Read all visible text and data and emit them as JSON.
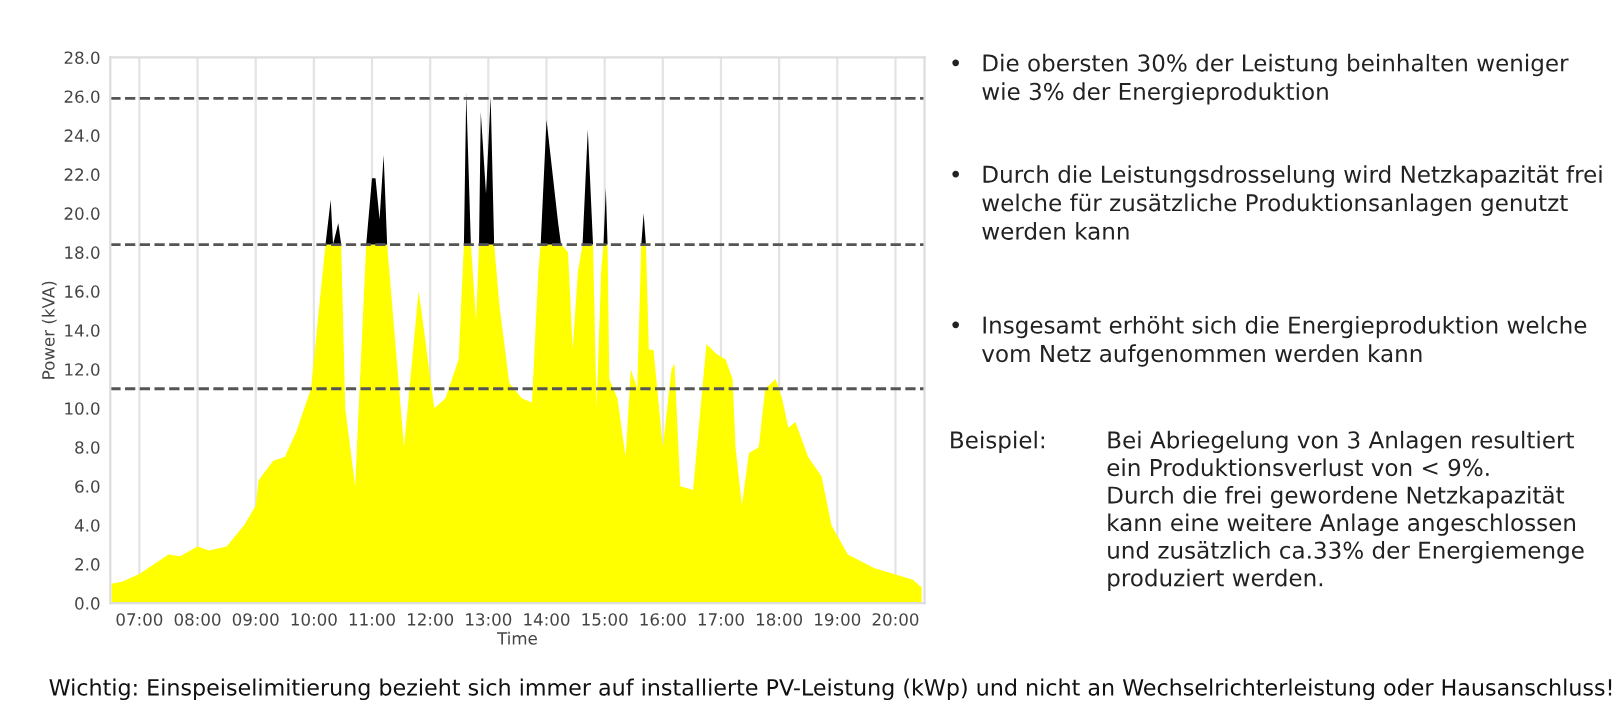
{
  "chart_data": {
    "type": "area",
    "stacked": true,
    "xlabel": "Time",
    "ylabel": "Power (kVA)",
    "x": [
      6.52,
      6.7,
      7.0,
      7.3,
      7.5,
      7.7,
      8.0,
      8.2,
      8.5,
      8.8,
      9.0,
      9.05,
      9.3,
      9.5,
      9.7,
      9.95,
      10.2,
      10.29,
      10.33,
      10.42,
      10.47,
      10.54,
      10.71,
      10.9,
      11.0,
      11.06,
      11.13,
      11.2,
      11.26,
      11.55,
      11.8,
      11.85,
      12.07,
      12.26,
      12.49,
      12.58,
      12.62,
      12.7,
      12.79,
      12.84,
      12.87,
      12.96,
      13.04,
      13.1,
      13.19,
      13.36,
      13.58,
      13.75,
      13.86,
      13.9,
      14.0,
      14.2,
      14.25,
      14.37,
      14.45,
      14.54,
      14.62,
      14.71,
      14.8,
      14.86,
      14.94,
      14.98,
      15.02,
      15.05,
      15.08,
      15.22,
      15.36,
      15.45,
      15.56,
      15.63,
      15.67,
      15.71,
      15.76,
      15.84,
      16.0,
      16.15,
      16.2,
      16.3,
      16.52,
      16.75,
      16.92,
      17.08,
      17.2,
      17.25,
      17.36,
      17.48,
      17.65,
      17.76,
      17.94,
      18.05,
      18.16,
      18.28,
      18.5,
      18.73,
      18.9,
      19.18,
      19.63,
      20.3,
      20.45
    ],
    "series": [
      {
        "color": "#ffff00",
        "values": [
          1.0,
          1.1,
          1.5,
          2.1,
          2.5,
          2.4,
          2.9,
          2.7,
          2.9,
          4.0,
          5.0,
          6.3,
          7.3,
          7.5,
          8.8,
          11.0,
          18.4,
          18.4,
          18.4,
          18.4,
          18.4,
          10.0,
          6.0,
          18.4,
          18.4,
          18.4,
          18.4,
          18.4,
          18.4,
          8.0,
          16.0,
          15.0,
          10.0,
          10.5,
          12.5,
          18.4,
          18.4,
          18.4,
          14.5,
          18.4,
          18.4,
          18.4,
          18.4,
          18.4,
          15.3,
          11.3,
          10.5,
          10.3,
          17.0,
          18.4,
          18.4,
          18.4,
          18.4,
          18.0,
          13.0,
          17.0,
          18.4,
          18.4,
          18.4,
          10.0,
          17.0,
          18.4,
          18.4,
          18.4,
          11.5,
          10.5,
          7.5,
          12.0,
          11.0,
          18.4,
          18.4,
          18.4,
          13.0,
          13.0,
          8.0,
          12.0,
          12.3,
          6.0,
          5.8,
          13.3,
          12.8,
          12.5,
          11.5,
          8.0,
          5.0,
          7.7,
          8.0,
          11.0,
          11.5,
          10.5,
          9.0,
          9.3,
          7.5,
          6.5,
          4.0,
          2.5,
          1.8,
          1.2,
          0.8
        ]
      },
      {
        "color": "#000000",
        "values": [
          0,
          0,
          0,
          0,
          0,
          0,
          0,
          0,
          0,
          0,
          0,
          0,
          0,
          0,
          0,
          0,
          0,
          2.3,
          0,
          1.1,
          0,
          0,
          0,
          0,
          3.4,
          3.4,
          1.3,
          4.6,
          0,
          0,
          0,
          0,
          0,
          0,
          0,
          0,
          7.8,
          0,
          0,
          0,
          6.8,
          2.6,
          7.6,
          0,
          0,
          0,
          0,
          0,
          0,
          0,
          6.4,
          1.1,
          0,
          0,
          0,
          0,
          0,
          5.9,
          0,
          0,
          0,
          0,
          2.9,
          0,
          0,
          0,
          0,
          0,
          0,
          0,
          1.6,
          0,
          0,
          0,
          0,
          0,
          0,
          0,
          0,
          0,
          0,
          0,
          0,
          0,
          0,
          0,
          0,
          0,
          0,
          0,
          0,
          0,
          0,
          0,
          0,
          0,
          0,
          0,
          0
        ]
      }
    ],
    "xlim": [
      6.5,
      20.5
    ],
    "xticks": [
      {
        "value": 7,
        "label": "07:00"
      },
      {
        "value": 8,
        "label": "08:00"
      },
      {
        "value": 9,
        "label": "09:00"
      },
      {
        "value": 10,
        "label": "10:00"
      },
      {
        "value": 11,
        "label": "11:00"
      },
      {
        "value": 12,
        "label": "12:00"
      },
      {
        "value": 13,
        "label": "13:00"
      },
      {
        "value": 14,
        "label": "14:00"
      },
      {
        "value": 15,
        "label": "15:00"
      },
      {
        "value": 16,
        "label": "16:00"
      },
      {
        "value": 17,
        "label": "17:00"
      },
      {
        "value": 18,
        "label": "18:00"
      },
      {
        "value": 19,
        "label": "19:00"
      },
      {
        "value": 20,
        "label": "20:00"
      }
    ],
    "ylim": [
      0,
      28
    ],
    "yticks": [
      {
        "value": 0,
        "label": "0.0"
      },
      {
        "value": 2,
        "label": "2.0"
      },
      {
        "value": 4,
        "label": "4.0"
      },
      {
        "value": 6,
        "label": "6.0"
      },
      {
        "value": 8,
        "label": "8.0"
      },
      {
        "value": 10,
        "label": "10.0"
      },
      {
        "value": 12,
        "label": "12.0"
      },
      {
        "value": 14,
        "label": "14.0"
      },
      {
        "value": 16,
        "label": "16.0"
      },
      {
        "value": 18,
        "label": "18.0"
      },
      {
        "value": 20,
        "label": "20.0"
      },
      {
        "value": 22,
        "label": "22.0"
      },
      {
        "value": 24,
        "label": "24.0"
      },
      {
        "value": 26,
        "label": "26.0"
      },
      {
        "value": 28,
        "label": "28.0"
      }
    ],
    "grid": "x",
    "ref_lines": [
      {
        "axis": "y",
        "value": 25.9,
        "color": "#555555",
        "line_style": "dashed"
      },
      {
        "axis": "y",
        "value": 18.4,
        "color": "#555555",
        "line_style": "dashed"
      },
      {
        "axis": "y",
        "value": 11.0,
        "color": "#555555",
        "line_style": "dashed"
      }
    ],
    "annotations": [
      "•",
      "Die obersten 30% der Leistung beinhalten weniger\nwie 3% der Energieproduktion",
      "•",
      "Durch die Leistungsdrosselung wird Netzkapazität frei\nwelche für zusätzliche Produktionsanlagen genutzt\nwerden kann",
      "•",
      "Insgesamt erhöht sich die Energieproduktion welche\nvom Netz aufgenommen werden kann",
      "Beispiel:",
      "Bei Abriegelung von 3 Anlagen resultiert\nein Produktionsverlust von < 9%.\nDurch die frei gewordene Netzkapazität\nkann eine weitere Anlage angeschlossen\nund zusätzlich ca.33% der Energiemenge\nproduziert werden.",
      "Wichtig: Einspeiselimitierung bezieht sich immer auf installierte PV-Leistung (kWp) und nicht an Wechselrichterleistung oder Hausanschluss!"
    ]
  }
}
